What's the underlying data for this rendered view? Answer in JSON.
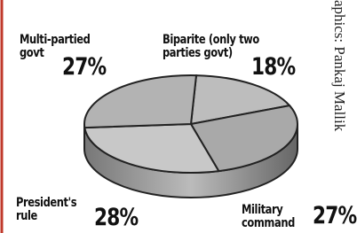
{
  "chart_data": {
    "type": "pie",
    "categories": [
      "Biparite (only two parties govt)",
      "Military command",
      "President's rule",
      "Multi-partied govt"
    ],
    "values": [
      18,
      27,
      28,
      27
    ],
    "value_labels": [
      "18%",
      "27%",
      "28%",
      "27%"
    ],
    "colors": [
      "#bdbdbd",
      "#a9a9a9",
      "#c8c8c8",
      "#b3b3b3"
    ],
    "credit": "aphics: Pankaj Mallik"
  }
}
